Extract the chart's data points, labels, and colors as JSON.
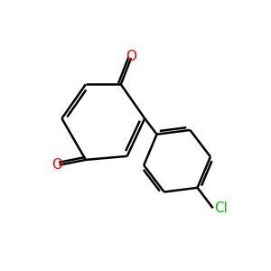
{
  "background": "#ffffff",
  "bond_color": "#000000",
  "bond_lw": 1.8,
  "O_color": "#ff0000",
  "Cl_color": "#00bb00",
  "font_size": 11,
  "figsize": [
    3.0,
    3.0
  ],
  "dpi": 100,
  "xlim": [
    0,
    10
  ],
  "ylim": [
    0,
    10
  ]
}
